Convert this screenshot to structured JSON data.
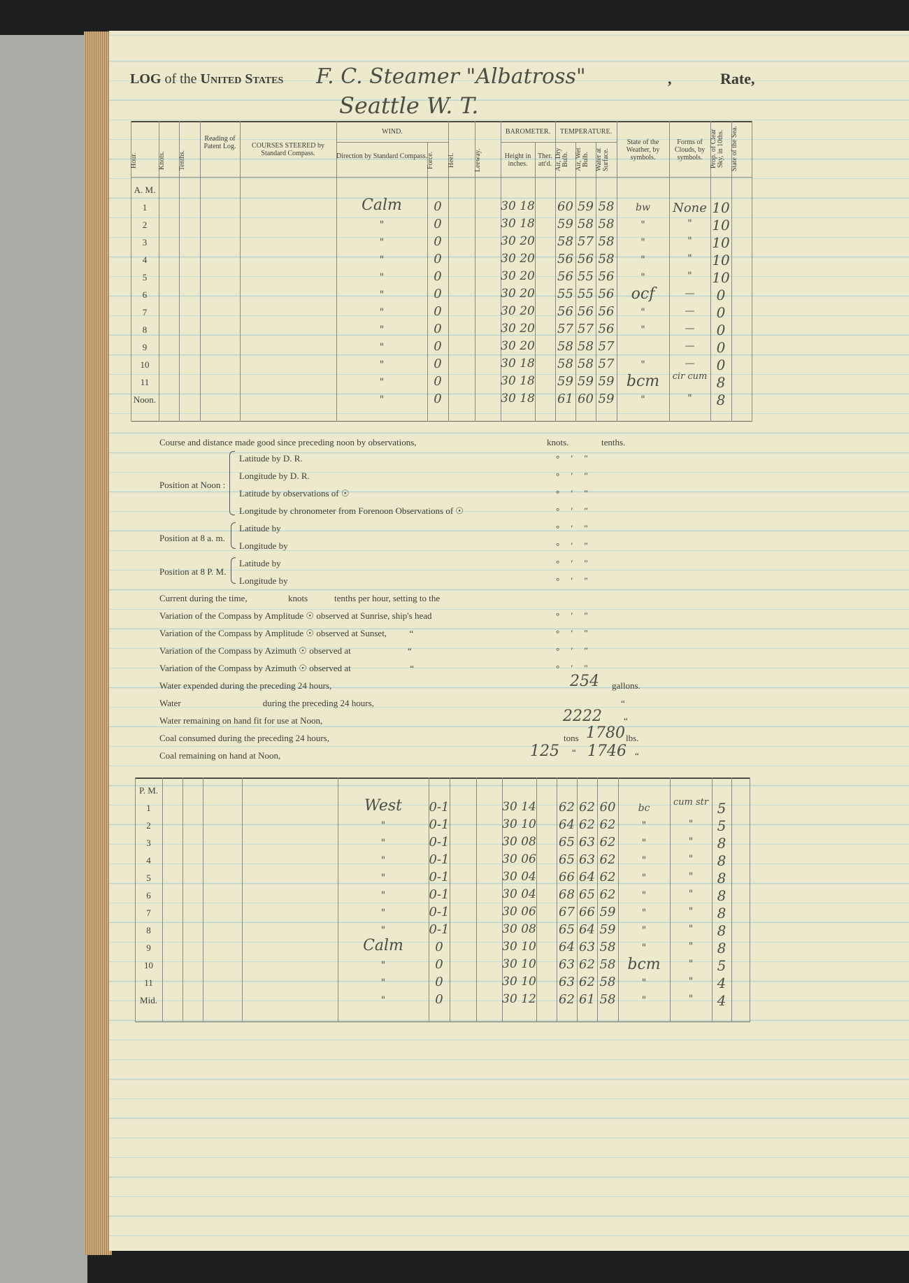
{
  "header": {
    "prefix_log": "LOG",
    "prefix_of": "of the",
    "prefix_us": "United States",
    "vessel": "F. C. Steamer \"Albatross\"",
    "comma": ",",
    "rate": "Rate,",
    "port": "Seattle W. T."
  },
  "columns": {
    "hour": "Hour.",
    "knots": "Knots.",
    "tenths": "Tenths.",
    "patent_log": "Reading of Patent Log.",
    "courses": "COURSES STEERED by Standard Compass.",
    "wind": "WIND.",
    "direction": "Direction by Standard Compass.",
    "force": "Force.",
    "heel": "Heel.",
    "leeway": "Leeway.",
    "barometer": "BAROMETER.",
    "height": "Height in inches.",
    "ther": "Ther. att'd.",
    "temperature": "TEMPERATURE.",
    "dry": "Air, Dry Bulb.",
    "wet": "Air, Wet Bulb.",
    "water": "Water at Surface.",
    "weather": "State of the Weather, by symbols.",
    "clouds": "Forms of Clouds, by symbols.",
    "clear": "Prop. of Clear Sky, in 10ths.",
    "sea": "State of the Sea."
  },
  "am": {
    "label": "A. M.",
    "rows": [
      {
        "hour": "1",
        "dir": "Calm",
        "force": "0",
        "baro": "30 18",
        "dry": "60",
        "wet": "59",
        "water": "58",
        "weather": "bw",
        "clouds": "None",
        "clear": "10"
      },
      {
        "hour": "2",
        "dir": "\"",
        "force": "0",
        "baro": "30 18",
        "dry": "59",
        "wet": "58",
        "water": "58",
        "weather": "\"",
        "clouds": "\"",
        "clear": "10"
      },
      {
        "hour": "3",
        "dir": "\"",
        "force": "0",
        "baro": "30 20",
        "dry": "58",
        "wet": "57",
        "water": "58",
        "weather": "\"",
        "clouds": "\"",
        "clear": "10"
      },
      {
        "hour": "4",
        "dir": "\"",
        "force": "0",
        "baro": "30 20",
        "dry": "56",
        "wet": "56",
        "water": "58",
        "weather": "\"",
        "clouds": "\"",
        "clear": "10"
      },
      {
        "hour": "5",
        "dir": "\"",
        "force": "0",
        "baro": "30 20",
        "dry": "56",
        "wet": "55",
        "water": "56",
        "weather": "\"",
        "clouds": "\"",
        "clear": "10"
      },
      {
        "hour": "6",
        "dir": "\"",
        "force": "0",
        "baro": "30 20",
        "dry": "55",
        "wet": "55",
        "water": "56",
        "weather": "ocf",
        "clouds": "—",
        "clear": "0"
      },
      {
        "hour": "7",
        "dir": "\"",
        "force": "0",
        "baro": "30 20",
        "dry": "56",
        "wet": "56",
        "water": "56",
        "weather": "\"",
        "clouds": "—",
        "clear": "0"
      },
      {
        "hour": "8",
        "dir": "\"",
        "force": "0",
        "baro": "30 20",
        "dry": "57",
        "wet": "57",
        "water": "56",
        "weather": "\"",
        "clouds": "—",
        "clear": "0"
      },
      {
        "hour": "9",
        "dir": "\"",
        "force": "0",
        "baro": "30 20",
        "dry": "58",
        "wet": "58",
        "water": "57",
        "weather": "",
        "clouds": "—",
        "clear": "0"
      },
      {
        "hour": "10",
        "dir": "\"",
        "force": "0",
        "baro": "30 18",
        "dry": "58",
        "wet": "58",
        "water": "57",
        "weather": "\"",
        "clouds": "—",
        "clear": "0"
      },
      {
        "hour": "11",
        "dir": "\"",
        "force": "0",
        "baro": "30 18",
        "dry": "59",
        "wet": "59",
        "water": "59",
        "weather": "bcm",
        "clouds": "cir cum",
        "clear": "8"
      },
      {
        "hour": "Noon.",
        "dir": "\"",
        "force": "0",
        "baro": "30 18",
        "dry": "61",
        "wet": "60",
        "water": "59",
        "weather": "\"",
        "clouds": "\"",
        "clear": "8"
      }
    ]
  },
  "middle": {
    "course_line": "Course and distance made good since preceding noon by observations,",
    "knots": "knots.",
    "tenths": "tenths.",
    "noon_label": "Position at Noon :",
    "noon_items": [
      "Latitude by D. R.",
      "Longitude by D. R.",
      "Latitude by observations of ☉",
      "Longitude by chronometer from Forenoon Observations of ☉"
    ],
    "am8_label": "Position at 8 a. m.",
    "pm8_label": "Position at 8 P. M.",
    "lat_by": "Latitude by",
    "lon_by": "Longitude by",
    "dms": "°     ′     ″",
    "current": "Current during the time,",
    "current_knots": "knots",
    "current_tail": "tenths per hour, setting to the",
    "variations": [
      "Variation of the Compass by Amplitude ☉ observed at Sunrise, ship's head",
      "Variation of the Compass by Amplitude ☉ observed at Sunset,          “",
      "Variation of the Compass by Azimuth ☉ observed at                         “",
      "Variation of the Compass by Azimuth ☉ observed at                          “"
    ],
    "water_expended": "Water expended during the preceding 24 hours,",
    "water_expended_val": "254",
    "gallons": "gallons.",
    "water_line": "Water                                    during the preceding 24 hours,",
    "ditto": "“",
    "water_remaining": "Water remaining on hand fit for use at Noon,",
    "water_remaining_val": "2222",
    "coal_consumed": "Coal consumed during the preceding 24 hours,",
    "tons": "tons",
    "coal_consumed_val": "1780",
    "lbs": "lbs.",
    "coal_remaining": "Coal remaining on hand at Noon,",
    "coal_remaining_tons": "125",
    "coal_remaining_lbs": "1746"
  },
  "pm": {
    "label": "P. M.",
    "rows": [
      {
        "hour": "1",
        "dir": "West",
        "force": "0-1",
        "baro": "30 14",
        "dry": "62",
        "wet": "62",
        "water": "60",
        "weather": "bc",
        "clouds": "cum str",
        "clear": "5"
      },
      {
        "hour": "2",
        "dir": "\"",
        "force": "0-1",
        "baro": "30 10",
        "dry": "64",
        "wet": "62",
        "water": "62",
        "weather": "\"",
        "clouds": "\"",
        "clear": "5"
      },
      {
        "hour": "3",
        "dir": "\"",
        "force": "0-1",
        "baro": "30 08",
        "dry": "65",
        "wet": "63",
        "water": "62",
        "weather": "\"",
        "clouds": "\"",
        "clear": "8"
      },
      {
        "hour": "4",
        "dir": "\"",
        "force": "0-1",
        "baro": "30 06",
        "dry": "65",
        "wet": "63",
        "water": "62",
        "weather": "\"",
        "clouds": "\"",
        "clear": "8"
      },
      {
        "hour": "5",
        "dir": "\"",
        "force": "0-1",
        "baro": "30 04",
        "dry": "66",
        "wet": "64",
        "water": "62",
        "weather": "\"",
        "clouds": "\"",
        "clear": "8"
      },
      {
        "hour": "6",
        "dir": "\"",
        "force": "0-1",
        "baro": "30 04",
        "dry": "68",
        "wet": "65",
        "water": "62",
        "weather": "\"",
        "clouds": "\"",
        "clear": "8"
      },
      {
        "hour": "7",
        "dir": "\"",
        "force": "0-1",
        "baro": "30 06",
        "dry": "67",
        "wet": "66",
        "water": "59",
        "weather": "\"",
        "clouds": "\"",
        "clear": "8"
      },
      {
        "hour": "8",
        "dir": "\"",
        "force": "0-1",
        "baro": "30 08",
        "dry": "65",
        "wet": "64",
        "water": "59",
        "weather": "\"",
        "clouds": "\"",
        "clear": "8"
      },
      {
        "hour": "9",
        "dir": "Calm",
        "force": "0",
        "baro": "30 10",
        "dry": "64",
        "wet": "63",
        "water": "58",
        "weather": "\"",
        "clouds": "\"",
        "clear": "8"
      },
      {
        "hour": "10",
        "dir": "\"",
        "force": "0",
        "baro": "30 10",
        "dry": "63",
        "wet": "62",
        "water": "58",
        "weather": "bcm",
        "clouds": "\"",
        "clear": "5"
      },
      {
        "hour": "11",
        "dir": "\"",
        "force": "0",
        "baro": "30 10",
        "dry": "63",
        "wet": "62",
        "water": "58",
        "weather": "\"",
        "clouds": "\"",
        "clear": "4"
      },
      {
        "hour": "Mid.",
        "dir": "\"",
        "force": "0",
        "baro": "30 12",
        "dry": "62",
        "wet": "61",
        "water": "58",
        "weather": "\"",
        "clouds": "\"",
        "clear": "4"
      }
    ]
  }
}
